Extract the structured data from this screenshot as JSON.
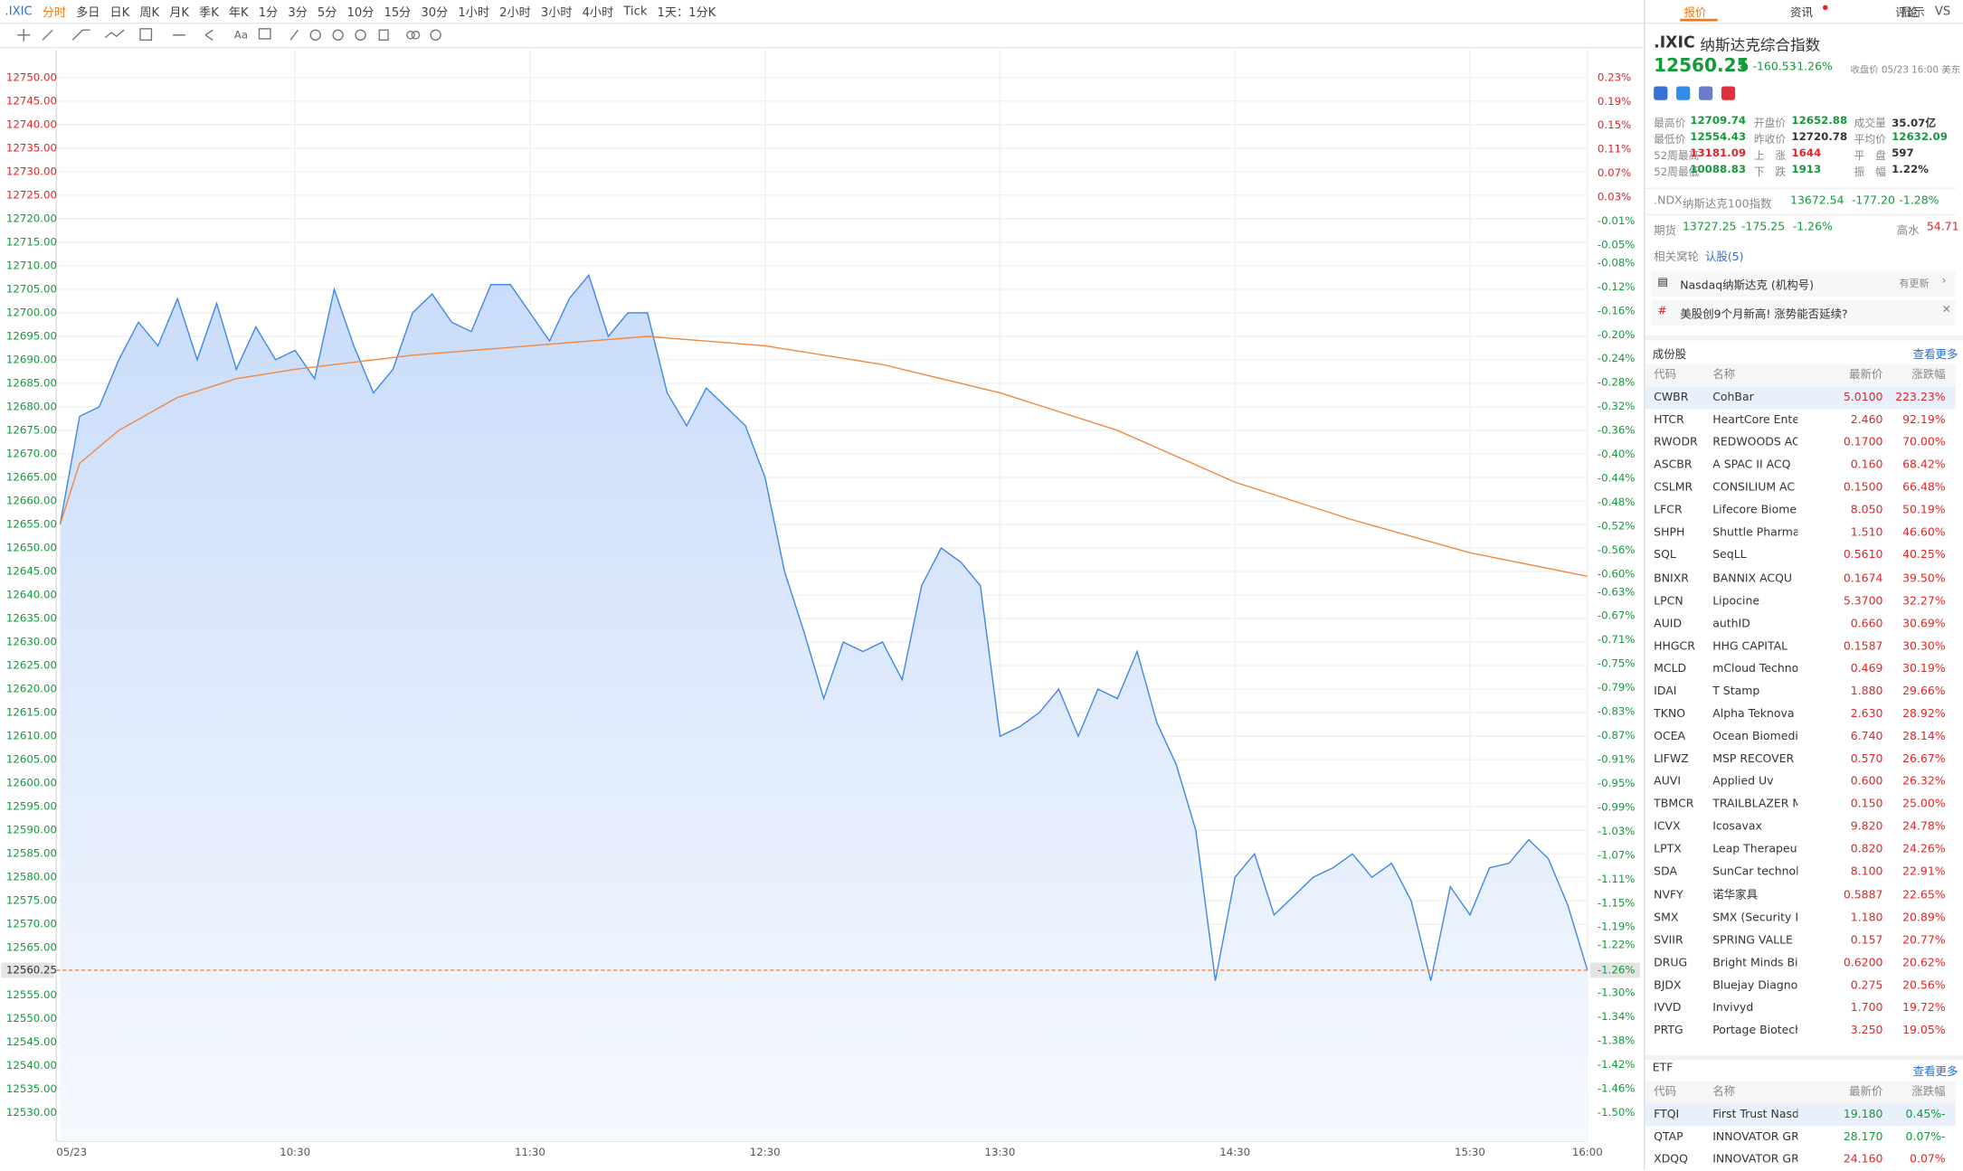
{
  "toolbar": {
    "tabs": [
      ".IXIC",
      "分时",
      "多日",
      "日K",
      "周K",
      "月K",
      "季K",
      "年K",
      "1分",
      "3分",
      "5分",
      "10分",
      "15分",
      "30分",
      "1小时",
      "2小时",
      "3小时",
      "4小时",
      "Tick",
      "1天：1分K"
    ],
    "right": [
      "显示",
      "VS"
    ],
    "draw_text": "Aa"
  },
  "chart_data": {
    "type": "line",
    "xlim": [
      "09:30",
      "16:00"
    ],
    "ylim": [
      12530,
      12750
    ],
    "y2lim": [
      -1.5,
      0.23
    ],
    "prev_close": 12720.78,
    "grid": true,
    "xticks": [
      {
        "value": "09:30",
        "label": "05/23"
      },
      "10:30",
      "11:30",
      "12:30",
      "13:30",
      "14:30",
      "15:30",
      "16:00"
    ],
    "yticks": [
      {
        "value": 12750,
        "label": "12750.00"
      },
      {
        "value": 12745,
        "label": "12745.00"
      },
      {
        "value": 12740,
        "label": "12740.00"
      },
      {
        "value": 12735,
        "label": "12735.00"
      },
      {
        "value": 12730,
        "label": "12730.00"
      },
      {
        "value": 12725,
        "label": "12725.00"
      },
      {
        "value": 12720,
        "label": "12720.00"
      },
      {
        "value": 12715,
        "label": "12715.00"
      },
      {
        "value": 12710,
        "label": "12710.00"
      },
      {
        "value": 12705,
        "label": "12705.00"
      },
      {
        "value": 12700,
        "label": "12700.00"
      },
      {
        "value": 12695,
        "label": "12695.00"
      },
      {
        "value": 12690,
        "label": "12690.00"
      },
      {
        "value": 12685,
        "label": "12685.00"
      },
      {
        "value": 12680,
        "label": "12680.00"
      },
      {
        "value": 12675,
        "label": "12675.00"
      },
      {
        "value": 12670,
        "label": "12670.00"
      },
      {
        "value": 12665,
        "label": "12665.00"
      },
      {
        "value": 12660,
        "label": "12660.00"
      },
      {
        "value": 12655,
        "label": "12655.00"
      },
      {
        "value": 12650,
        "label": "12650.00"
      },
      {
        "value": 12645,
        "label": "12645.00"
      },
      {
        "value": 12640,
        "label": "12640.00"
      },
      {
        "value": 12635,
        "label": "12635.00"
      },
      {
        "value": 12630,
        "label": "12630.00"
      },
      {
        "value": 12625,
        "label": "12625.00"
      },
      {
        "value": 12620,
        "label": "12620.00"
      },
      {
        "value": 12615,
        "label": "12615.00"
      },
      {
        "value": 12610,
        "label": "12610.00"
      },
      {
        "value": 12605,
        "label": "12605.00"
      },
      {
        "value": 12600,
        "label": "12600.00"
      },
      {
        "value": 12595,
        "label": "12595.00"
      },
      {
        "value": 12590,
        "label": "12590.00"
      },
      {
        "value": 12585,
        "label": "12585.00"
      },
      {
        "value": 12580,
        "label": "12580.00"
      },
      {
        "value": 12575,
        "label": "12575.00"
      },
      {
        "value": 12570,
        "label": "12570.00"
      },
      {
        "value": 12565,
        "label": "12565.00"
      },
      {
        "value": 12555,
        "label": "12555.00"
      },
      {
        "value": 12550,
        "label": "12550.00"
      },
      {
        "value": 12545,
        "label": "12545.00"
      },
      {
        "value": 12540,
        "label": "12540.00"
      },
      {
        "value": 12535,
        "label": "12535.00"
      },
      {
        "value": 12530,
        "label": "12530.00"
      }
    ],
    "y2ticks": [
      {
        "value": 0.23,
        "label": "0.23%"
      },
      {
        "value": 0.19,
        "label": "0.19%"
      },
      {
        "value": 0.15,
        "label": "0.15%"
      },
      {
        "value": 0.11,
        "label": "0.11%"
      },
      {
        "value": 0.07,
        "label": "0.07%"
      },
      {
        "value": 0.03,
        "label": "0.03%"
      },
      {
        "value": -0.01,
        "label": "-0.01%"
      },
      {
        "value": -0.05,
        "label": "-0.05%"
      },
      {
        "value": -0.08,
        "label": "-0.08%"
      },
      {
        "value": -0.12,
        "label": "-0.12%"
      },
      {
        "value": -0.16,
        "label": "-0.16%"
      },
      {
        "value": -0.2,
        "label": "-0.20%"
      },
      {
        "value": -0.24,
        "label": "-0.24%"
      },
      {
        "value": -0.28,
        "label": "-0.28%"
      },
      {
        "value": -0.32,
        "label": "-0.32%"
      },
      {
        "value": -0.36,
        "label": "-0.36%"
      },
      {
        "value": -0.4,
        "label": "-0.40%"
      },
      {
        "value": -0.44,
        "label": "-0.44%"
      },
      {
        "value": -0.48,
        "label": "-0.48%"
      },
      {
        "value": -0.52,
        "label": "-0.52%"
      },
      {
        "value": -0.56,
        "label": "-0.56%"
      },
      {
        "value": -0.6,
        "label": "-0.60%"
      },
      {
        "value": -0.63,
        "label": "-0.63%"
      },
      {
        "value": -0.67,
        "label": "-0.67%"
      },
      {
        "value": -0.71,
        "label": "-0.71%"
      },
      {
        "value": -0.75,
        "label": "-0.75%"
      },
      {
        "value": -0.79,
        "label": "-0.79%"
      },
      {
        "value": -0.83,
        "label": "-0.83%"
      },
      {
        "value": -0.87,
        "label": "-0.87%"
      },
      {
        "value": -0.91,
        "label": "-0.91%"
      },
      {
        "value": -0.95,
        "label": "-0.95%"
      },
      {
        "value": -0.99,
        "label": "-0.99%"
      },
      {
        "value": -1.03,
        "label": "-1.03%"
      },
      {
        "value": -1.07,
        "label": "-1.07%"
      },
      {
        "value": -1.11,
        "label": "-1.11%"
      },
      {
        "value": -1.15,
        "label": "-1.15%"
      },
      {
        "value": -1.19,
        "label": "-1.19%"
      },
      {
        "value": -1.22,
        "label": "-1.22%"
      },
      {
        "value": -1.3,
        "label": "-1.30%"
      },
      {
        "value": -1.34,
        "label": "-1.34%"
      },
      {
        "value": -1.38,
        "label": "-1.38%"
      },
      {
        "value": -1.42,
        "label": "-1.42%"
      },
      {
        "value": -1.46,
        "label": "-1.46%"
      },
      {
        "value": -1.5,
        "label": "-1.50%"
      }
    ],
    "current": 12560.25,
    "current_pct": {
      "value": -1.26,
      "label": "-1.26%"
    },
    "series": [
      {
        "color": "#3d86e6",
        "area": true,
        "x": [
          "09:30",
          "09:35",
          "09:40",
          "09:45",
          "09:50",
          "09:55",
          "10:00",
          "10:05",
          "10:10",
          "10:15",
          "10:20",
          "10:25",
          "10:30",
          "10:35",
          "10:40",
          "10:45",
          "10:50",
          "10:55",
          "11:00",
          "11:05",
          "11:10",
          "11:15",
          "11:20",
          "11:25",
          "11:30",
          "11:35",
          "11:40",
          "11:45",
          "11:50",
          "11:55",
          "12:00",
          "12:05",
          "12:10",
          "12:15",
          "12:20",
          "12:25",
          "12:30",
          "12:35",
          "12:40",
          "12:45",
          "12:50",
          "12:55",
          "13:00",
          "13:05",
          "13:10",
          "13:15",
          "13:20",
          "13:25",
          "13:30",
          "13:35",
          "13:40",
          "13:45",
          "13:50",
          "13:55",
          "14:00",
          "14:05",
          "14:10",
          "14:15",
          "14:20",
          "14:25",
          "14:30",
          "14:35",
          "14:40",
          "14:45",
          "14:50",
          "14:55",
          "15:00",
          "15:05",
          "15:10",
          "15:15",
          "15:20",
          "15:25",
          "15:30",
          "15:35",
          "15:40",
          "15:45",
          "15:50",
          "15:55",
          "16:00"
        ],
        "values": [
          12655,
          12678,
          12680,
          12690,
          12698,
          12693,
          12703,
          12690,
          12702,
          12688,
          12697,
          12690,
          12692,
          12686,
          12705,
          12693,
          12683,
          12688,
          12700,
          12704,
          12698,
          12696,
          12706,
          12706,
          12700,
          12694,
          12703,
          12708,
          12695,
          12700,
          12700,
          12683,
          12676,
          12684,
          12680,
          12676,
          12665,
          12645,
          12632,
          12618,
          12630,
          12628,
          12630,
          12622,
          12642,
          12650,
          12647,
          12642,
          12610,
          12612,
          12615,
          12620,
          12610,
          12620,
          12618,
          12628,
          12613,
          12604,
          12590,
          12558,
          12580,
          12585,
          12572,
          12576,
          12580,
          12582,
          12585,
          12580,
          12583,
          12575,
          12558,
          12578,
          12572,
          12582,
          12583,
          12588,
          12584,
          12574,
          12560.25
        ]
      },
      {
        "color": "#f0883e",
        "area": false,
        "x": [
          "09:30",
          "09:35",
          "09:45",
          "10:00",
          "10:15",
          "10:30",
          "11:00",
          "11:30",
          "12:00",
          "12:30",
          "13:00",
          "13:30",
          "14:00",
          "14:30",
          "15:00",
          "15:30",
          "16:00"
        ],
        "values": [
          12655,
          12668,
          12675,
          12682,
          12686,
          12688,
          12691,
          12693,
          12695,
          12693,
          12689,
          12683,
          12675,
          12664,
          12656,
          12649,
          12644
        ]
      }
    ]
  },
  "panel": {
    "tabs": [
      "报价",
      "资讯",
      "评论"
    ],
    "symbol": ".IXIC",
    "name": "纳斯达克综合指数",
    "price": "12560.25",
    "change": "-160.53",
    "change_pct": "-1.26%",
    "close_note": "收盘价 05/23 16:00 美东",
    "stats": [
      [
        "最高价",
        "12709.74",
        "开盘价",
        "12652.88",
        "成交量",
        "35.07亿"
      ],
      [
        "最低价",
        "12554.43",
        "昨收价",
        "12720.78",
        "平均价",
        "12632.09"
      ],
      [
        "52周最高",
        "13181.09",
        "上　涨",
        "1644",
        "平　盘",
        "597"
      ],
      [
        "52周最低",
        "10088.83",
        "下　跌",
        "1913",
        "振　幅",
        "1.22%"
      ]
    ],
    "ndx": [
      ".NDX",
      "纳斯达克100指数",
      "13672.54",
      "-177.20",
      "-1.28%"
    ],
    "futures": [
      "期货",
      "13727.25",
      "-175.25",
      "-1.26%",
      "高水",
      "54.71"
    ],
    "warrants": [
      "相关窝轮",
      "认股(5)"
    ],
    "news": [
      {
        "text": "Nasdaq纳斯达克 (机构号)",
        "tag": "有更新"
      },
      {
        "text": "美股创9个月新高! 涨势能否延续?"
      }
    ],
    "components": {
      "title": "成份股",
      "more": "查看更多",
      "headers": [
        "代码",
        "名称",
        "最新价",
        "涨跌幅"
      ],
      "rows": [
        [
          "CWBR",
          "CohBar",
          "5.0100",
          "223.23%"
        ],
        [
          "HTCR",
          "HeartCore Ente",
          "2.460",
          "92.19%"
        ],
        [
          "RWODR",
          "REDWOODS AC",
          "0.1700",
          "70.00%"
        ],
        [
          "ASCBR",
          "A SPAC II ACQ",
          "0.160",
          "68.42%"
        ],
        [
          "CSLMR",
          "CONSILIUM AC",
          "0.1500",
          "66.48%"
        ],
        [
          "LFCR",
          "Lifecore Biome",
          "8.050",
          "50.19%"
        ],
        [
          "SHPH",
          "Shuttle Pharma",
          "1.510",
          "46.60%"
        ],
        [
          "SQL",
          "SeqLL",
          "0.5610",
          "40.25%"
        ],
        [
          "BNIXR",
          "BANNIX ACQU",
          "0.1674",
          "39.50%"
        ],
        [
          "LPCN",
          "Lipocine",
          "5.3700",
          "32.27%"
        ],
        [
          "AUID",
          "authID",
          "0.660",
          "30.69%"
        ],
        [
          "HHGCR",
          "HHG CAPITAL",
          "0.1587",
          "30.30%"
        ],
        [
          "MCLD",
          "mCloud Techno",
          "0.469",
          "30.19%"
        ],
        [
          "IDAI",
          "T Stamp",
          "1.880",
          "29.66%"
        ],
        [
          "TKNO",
          "Alpha Teknova",
          "2.630",
          "28.92%"
        ],
        [
          "OCEA",
          "Ocean Biomedi",
          "6.740",
          "28.14%"
        ],
        [
          "LIFWZ",
          "MSP RECOVER",
          "0.570",
          "26.67%"
        ],
        [
          "AUVI",
          "Applied Uv",
          "0.600",
          "26.32%"
        ],
        [
          "TBMCR",
          "TRAILBLAZER M",
          "0.150",
          "25.00%"
        ],
        [
          "ICVX",
          "Icosavax",
          "9.820",
          "24.78%"
        ],
        [
          "LPTX",
          "Leap Therapeut",
          "0.820",
          "24.26%"
        ],
        [
          "SDA",
          "SunCar technol",
          "8.100",
          "22.91%"
        ],
        [
          "NVFY",
          "诺华家具",
          "0.5887",
          "22.65%"
        ],
        [
          "SMX",
          "SMX (Security I",
          "1.180",
          "20.89%"
        ],
        [
          "SVIIR",
          "SPRING VALLE",
          "0.157",
          "20.77%"
        ],
        [
          "DRUG",
          "Bright Minds Bi",
          "0.6200",
          "20.62%"
        ],
        [
          "BJDX",
          "Bluejay Diagnos",
          "0.275",
          "20.56%"
        ],
        [
          "IVVD",
          "Invivyd",
          "1.700",
          "19.72%"
        ],
        [
          "PRTG",
          "Portage Biotech",
          "3.250",
          "19.05%"
        ]
      ]
    },
    "etf": {
      "title": "ETF",
      "more": "查看更多",
      "headers": [
        "代码",
        "名称",
        "最新价",
        "涨跌幅"
      ],
      "rows": [
        [
          "FTQI",
          "First Trust Nasdaq",
          "19.180",
          "-0.45%"
        ],
        [
          "QTAP",
          "INNOVATOR GRO",
          "28.170",
          "-0.07%"
        ],
        [
          "XDQQ",
          "INNOVATOR GRO",
          "24.160",
          "0.07%"
        ]
      ]
    }
  }
}
